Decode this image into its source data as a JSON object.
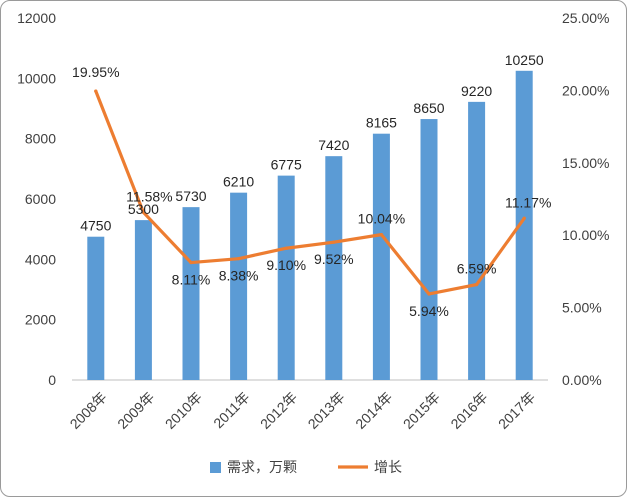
{
  "chart_data": {
    "type": "bar",
    "categories": [
      "2008年",
      "2009年",
      "2010年",
      "2011年",
      "2012年",
      "2013年",
      "2014年",
      "2015年",
      "2016年",
      "2017年"
    ],
    "series": [
      {
        "name": "需求，万颗",
        "type": "bar",
        "axis": "left",
        "color": "#5B9BD5",
        "values": [
          4750,
          5300,
          5730,
          6210,
          6775,
          7420,
          8165,
          8650,
          9220,
          10250
        ],
        "labels": [
          "4750",
          "5300",
          "5730",
          "6210",
          "6775",
          "7420",
          "8165",
          "8650",
          "9220",
          "10250"
        ]
      },
      {
        "name": "增长",
        "type": "line",
        "axis": "right",
        "color": "#ED7D31",
        "values": [
          19.95,
          11.58,
          8.11,
          8.38,
          9.1,
          9.52,
          10.04,
          5.94,
          6.59,
          11.17
        ],
        "labels": [
          "19.95%",
          "11.58%",
          "8.11%",
          "8.38%",
          "9.10%",
          "9.52%",
          "10.04%",
          "5.94%",
          "6.59%",
          "11.17%"
        ]
      }
    ],
    "y_left": {
      "min": 0,
      "max": 12000,
      "ticks": [
        "0",
        "2000",
        "4000",
        "6000",
        "8000",
        "10000",
        "12000"
      ]
    },
    "y_right": {
      "min": 0,
      "max": 25,
      "ticks": [
        "0.00%",
        "5.00%",
        "10.00%",
        "15.00%",
        "20.00%",
        "25.00%"
      ]
    },
    "legend": {
      "position": "bottom",
      "items": [
        "需求，万颗",
        "增长"
      ]
    },
    "grid": false
  }
}
